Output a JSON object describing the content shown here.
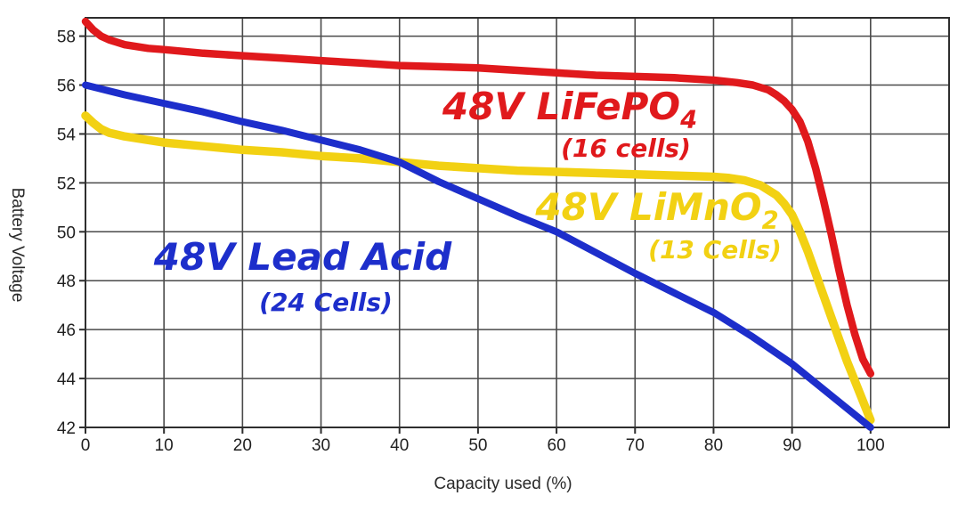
{
  "chart_data": {
    "type": "line",
    "title": "",
    "xlabel": "Capacity used (%)",
    "ylabel": "Battery Voltage",
    "xlim": [
      0,
      110
    ],
    "ylim": [
      42,
      58.75
    ],
    "x_ticks": [
      0,
      10,
      20,
      30,
      40,
      50,
      60,
      70,
      80,
      90,
      100
    ],
    "y_ticks": [
      42,
      44,
      46,
      48,
      50,
      52,
      54,
      56,
      58
    ],
    "grid": true,
    "legend_position": "inline-annotations",
    "series": [
      {
        "name": "48V LiFePO4 (16 cells)",
        "label_main": "48V LiFePO",
        "label_sub": "4",
        "cells_label": "(16 cells)",
        "color": "#e0191c",
        "points": [
          [
            0,
            58.6
          ],
          [
            1,
            58.25
          ],
          [
            2,
            58.0
          ],
          [
            3,
            57.85
          ],
          [
            5,
            57.65
          ],
          [
            8,
            57.5
          ],
          [
            10,
            57.45
          ],
          [
            15,
            57.3
          ],
          [
            20,
            57.2
          ],
          [
            25,
            57.1
          ],
          [
            30,
            57.0
          ],
          [
            35,
            56.9
          ],
          [
            40,
            56.8
          ],
          [
            45,
            56.75
          ],
          [
            50,
            56.7
          ],
          [
            55,
            56.6
          ],
          [
            60,
            56.5
          ],
          [
            65,
            56.4
          ],
          [
            70,
            56.35
          ],
          [
            75,
            56.3
          ],
          [
            80,
            56.2
          ],
          [
            83,
            56.1
          ],
          [
            85,
            56.0
          ],
          [
            87,
            55.8
          ],
          [
            88,
            55.6
          ],
          [
            89,
            55.35
          ],
          [
            90,
            55.0
          ],
          [
            91,
            54.5
          ],
          [
            92,
            53.7
          ],
          [
            93,
            52.6
          ],
          [
            94,
            51.3
          ],
          [
            95,
            49.9
          ],
          [
            96,
            48.4
          ],
          [
            97,
            47.0
          ],
          [
            98,
            45.8
          ],
          [
            99,
            44.8
          ],
          [
            100,
            44.2
          ]
        ]
      },
      {
        "name": "48V LiMnO2 (13 Cells)",
        "label_main": "48V LiMnO",
        "label_sub": "2",
        "cells_label": "(13 Cells)",
        "color": "#f2d113",
        "points": [
          [
            0,
            54.75
          ],
          [
            1,
            54.45
          ],
          [
            2,
            54.2
          ],
          [
            3,
            54.05
          ],
          [
            5,
            53.9
          ],
          [
            8,
            53.75
          ],
          [
            10,
            53.65
          ],
          [
            15,
            53.5
          ],
          [
            20,
            53.35
          ],
          [
            25,
            53.25
          ],
          [
            30,
            53.1
          ],
          [
            35,
            53.0
          ],
          [
            40,
            52.85
          ],
          [
            45,
            52.7
          ],
          [
            50,
            52.6
          ],
          [
            55,
            52.5
          ],
          [
            60,
            52.45
          ],
          [
            65,
            52.4
          ],
          [
            70,
            52.35
          ],
          [
            75,
            52.3
          ],
          [
            80,
            52.25
          ],
          [
            82,
            52.2
          ],
          [
            84,
            52.1
          ],
          [
            86,
            51.9
          ],
          [
            88,
            51.5
          ],
          [
            89,
            51.15
          ],
          [
            90,
            50.7
          ],
          [
            91,
            50.0
          ],
          [
            92,
            49.2
          ],
          [
            93,
            48.3
          ],
          [
            94,
            47.4
          ],
          [
            95,
            46.5
          ],
          [
            96,
            45.6
          ],
          [
            97,
            44.7
          ],
          [
            98,
            43.9
          ],
          [
            99,
            43.1
          ],
          [
            100,
            42.3
          ]
        ]
      },
      {
        "name": "48V Lead Acid (24 Cells)",
        "label_main": "48V Lead Acid",
        "label_sub": "",
        "cells_label": "(24 Cells)",
        "color": "#1d2ecb",
        "points": [
          [
            0,
            56.0
          ],
          [
            5,
            55.6
          ],
          [
            10,
            55.25
          ],
          [
            15,
            54.9
          ],
          [
            20,
            54.5
          ],
          [
            25,
            54.15
          ],
          [
            30,
            53.75
          ],
          [
            35,
            53.35
          ],
          [
            40,
            52.85
          ],
          [
            45,
            52.05
          ],
          [
            50,
            51.35
          ],
          [
            55,
            50.65
          ],
          [
            60,
            50.0
          ],
          [
            65,
            49.15
          ],
          [
            70,
            48.3
          ],
          [
            75,
            47.5
          ],
          [
            80,
            46.7
          ],
          [
            85,
            45.7
          ],
          [
            90,
            44.6
          ],
          [
            95,
            43.3
          ],
          [
            100,
            42.0
          ]
        ]
      }
    ],
    "colors": {
      "grid": "#4a4a4a",
      "frame": "#2e2e2e",
      "tick_text": "#1f1f1f",
      "background": "#ffffff"
    }
  }
}
